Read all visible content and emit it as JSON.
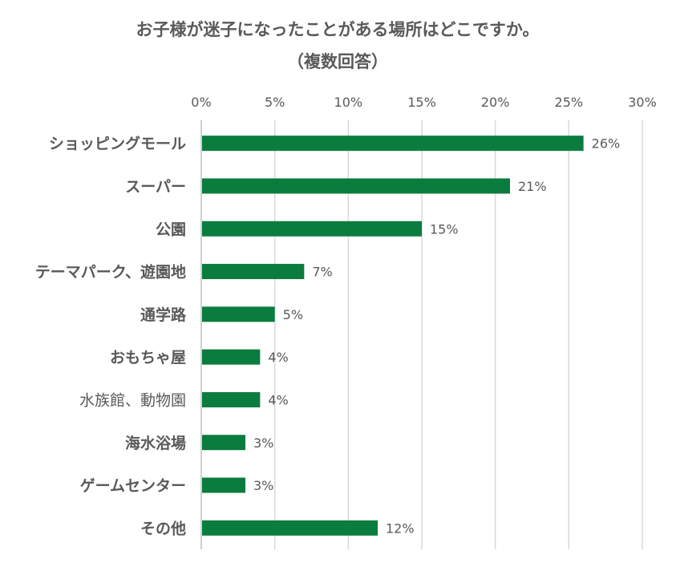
{
  "chart_data": {
    "type": "bar",
    "orientation": "horizontal",
    "title": "お子様が迷子になったことがある場所はどこですか。",
    "subtitle": "（複数回答）",
    "categories": [
      "ショッピングモール",
      "スーパー",
      "公園",
      "テーマパーク、遊園地",
      "通学路",
      "おもちゃ屋",
      "水族館、動物園",
      "海水浴場",
      "ゲームセンター",
      "その他"
    ],
    "values": [
      26,
      21,
      15,
      7,
      5,
      4,
      4,
      3,
      3,
      12
    ],
    "data_labels": [
      "26%",
      "21%",
      "15%",
      "7%",
      "5%",
      "4%",
      "4%",
      "3%",
      "3%",
      "12%"
    ],
    "xlim": [
      0,
      30
    ],
    "x_ticks": [
      0,
      5,
      10,
      15,
      20,
      25,
      30
    ],
    "x_tick_labels": [
      "0%",
      "5%",
      "10%",
      "15%",
      "20%",
      "25%",
      "30%"
    ],
    "x_axis_position": "top",
    "grid": true,
    "legend": "none",
    "bar_color": "#0a7c3e"
  }
}
